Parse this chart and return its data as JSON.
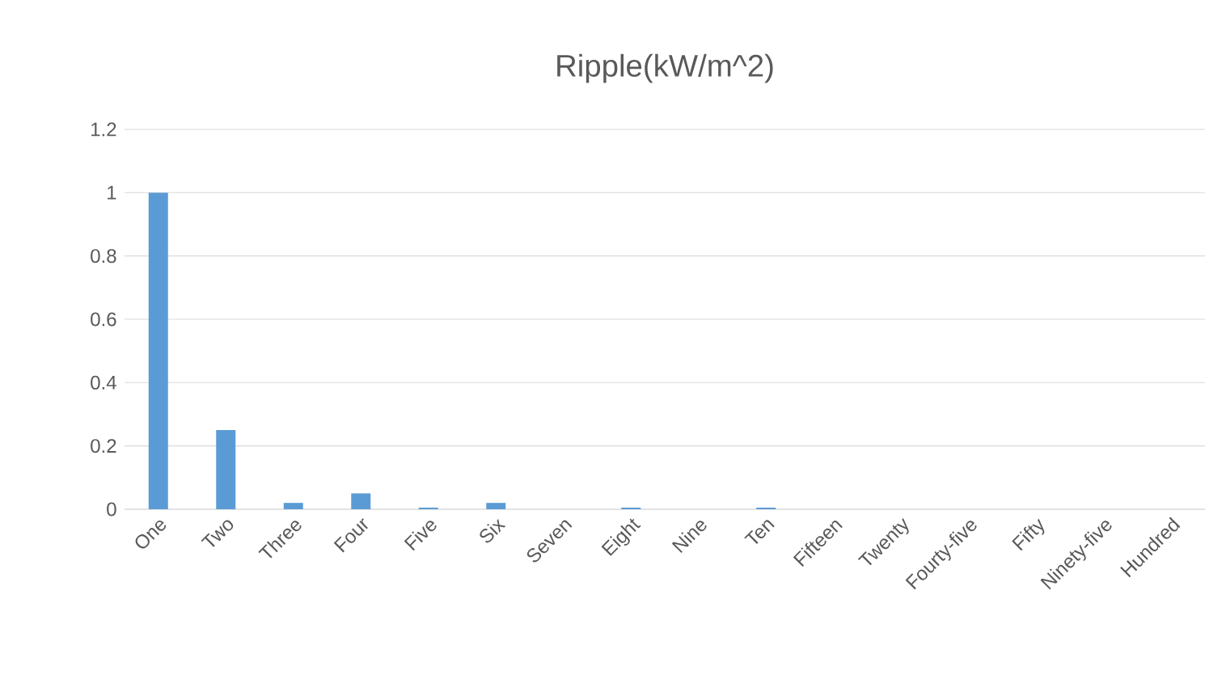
{
  "chart_data": {
    "type": "bar",
    "title": "Ripple(kW/m^2)",
    "categories": [
      "One",
      "Two",
      "Three",
      "Four",
      "Five",
      "Six",
      "Seven",
      "Eight",
      "Nine",
      "Ten",
      "Fifteen",
      "Twenty",
      "Fourty-five",
      "Fifty",
      "Ninety-five",
      "Hundred"
    ],
    "values": [
      1,
      0.25,
      0.02,
      0.05,
      0.005,
      0.02,
      0,
      0.005,
      0,
      0.005,
      0,
      0,
      0,
      0,
      0,
      0
    ],
    "color": "#5b9bd5",
    "ylim": [
      0,
      1.2
    ],
    "yticks": [
      0,
      0.2,
      0.4,
      0.6,
      0.8,
      1,
      1.2
    ],
    "grid": "y"
  }
}
